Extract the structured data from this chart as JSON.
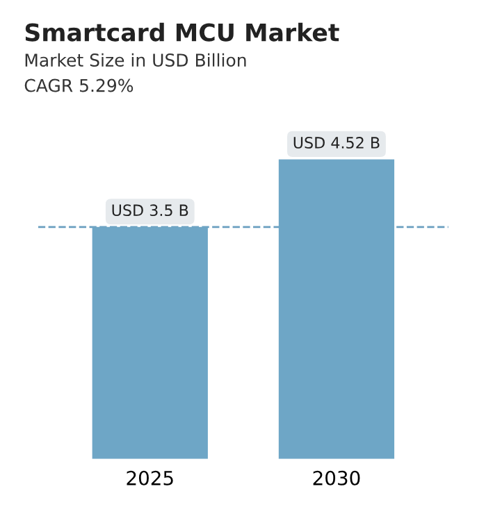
{
  "chart_data": {
    "type": "bar",
    "title": "Smartcard MCU Market",
    "subtitle": "Market Size in USD Billion",
    "annotations": [
      "CAGR 5.29%"
    ],
    "categories": [
      "2025",
      "2030"
    ],
    "values": [
      3.5,
      4.52
    ],
    "value_labels": [
      "USD 3.5 B",
      "USD 4.52 B"
    ],
    "color": "#6ea6c6",
    "ref_lines": [
      {
        "axis": "y",
        "value": 3.5,
        "color": "#6a9fc0",
        "line_style": "dashed"
      }
    ],
    "grid": false,
    "legend": false
  }
}
